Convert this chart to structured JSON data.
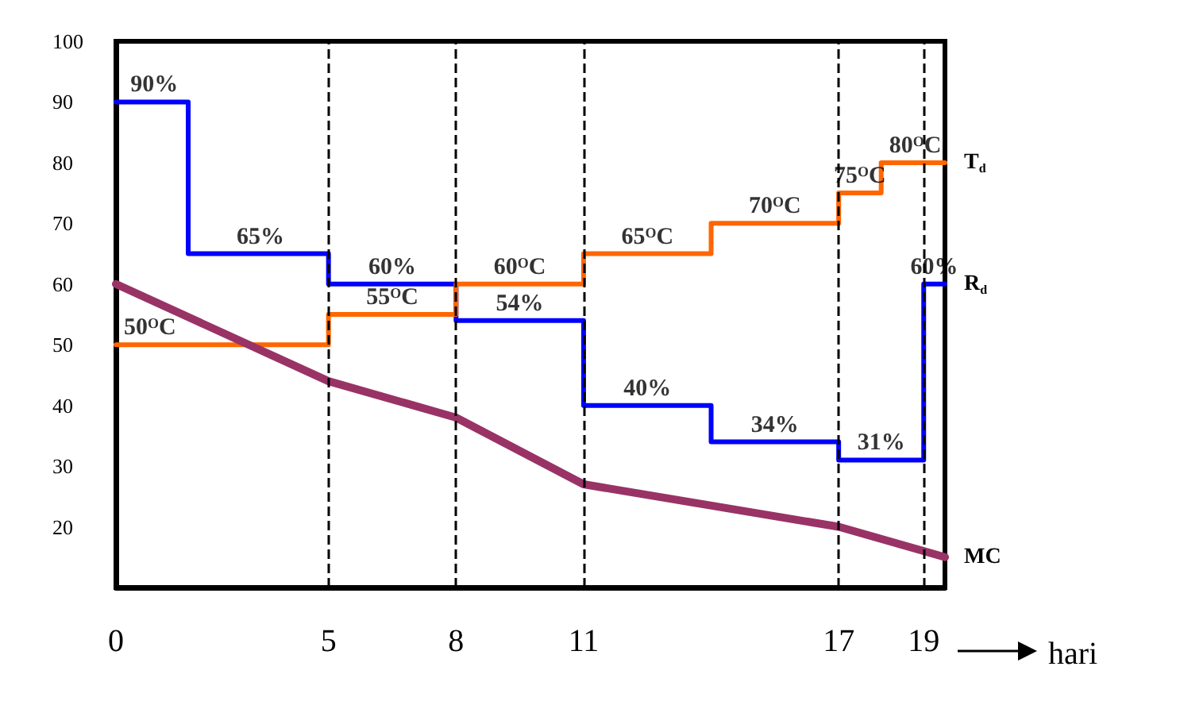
{
  "chart_data": {
    "type": "step",
    "xlabel": "hari",
    "xlim": [
      0,
      19.5
    ],
    "xticks": [
      0,
      5,
      8,
      11,
      17,
      19
    ],
    "ylim": [
      10,
      100
    ],
    "yticks": [
      20,
      30,
      40,
      50,
      60,
      70,
      80,
      90,
      100
    ],
    "grid": false,
    "marker": "none",
    "line_style": "solid",
    "series": [
      {
        "name": "R$_{d}$",
        "color": "#0000ff",
        "x": [
          0,
          1.7,
          5,
          8,
          11,
          14,
          17,
          19,
          19.5
        ],
        "values": [
          90,
          65,
          60,
          54,
          40,
          34,
          31,
          60,
          60
        ]
      },
      {
        "name": "T$_{d}$",
        "color": "#ff6600",
        "x": [
          0,
          5,
          8,
          11,
          14,
          17,
          18,
          19.5
        ],
        "values": [
          50,
          55,
          60,
          65,
          70,
          75,
          80,
          80
        ]
      },
      {
        "name": "MC",
        "type": "line",
        "color": "#993366",
        "x": [
          0,
          5,
          8,
          11,
          17,
          19.5
        ],
        "values": [
          60,
          44,
          38,
          27,
          20,
          15
        ]
      }
    ],
    "ref_lines": [
      {
        "axis": "x",
        "value": 5,
        "color": "#000000",
        "line_style": "dashed"
      },
      {
        "axis": "x",
        "value": 8,
        "color": "#000000",
        "line_style": "dashed"
      },
      {
        "axis": "x",
        "value": 11,
        "color": "#000000",
        "line_style": "dashed"
      },
      {
        "axis": "x",
        "value": 17,
        "color": "#000000",
        "line_style": "dashed"
      },
      {
        "axis": "x",
        "value": 19,
        "color": "#000000",
        "line_style": "dashed"
      }
    ],
    "annotations": [
      {
        "text": "90%",
        "x": 0.9,
        "y": 90
      },
      {
        "text": "65%",
        "x": 3.4,
        "y": 65
      },
      {
        "text": "60%",
        "x": 6.5,
        "y": 60
      },
      {
        "text": "60$^{O}$C",
        "x": 9.5,
        "y": 60
      },
      {
        "text": "50$^{O}$C",
        "x": 0.8,
        "y": 50
      },
      {
        "text": "55$^{O}$C",
        "x": 6.5,
        "y": 55
      },
      {
        "text": "54%",
        "x": 9.5,
        "y": 54
      },
      {
        "text": "65$^{O}$C",
        "x": 12.5,
        "y": 65
      },
      {
        "text": "70$^{O}$C",
        "x": 15.5,
        "y": 70
      },
      {
        "text": "75$^{O}$C",
        "x": 17.5,
        "y": 75
      },
      {
        "text": "80$^{O}$C",
        "x": 18.8,
        "y": 80
      },
      {
        "text": "40%",
        "x": 12.5,
        "y": 40
      },
      {
        "text": "34%",
        "x": 15.5,
        "y": 34
      },
      {
        "text": "31%",
        "x": 18,
        "y": 31
      },
      {
        "text": "60%",
        "x": 19.25,
        "y": 60
      }
    ]
  }
}
